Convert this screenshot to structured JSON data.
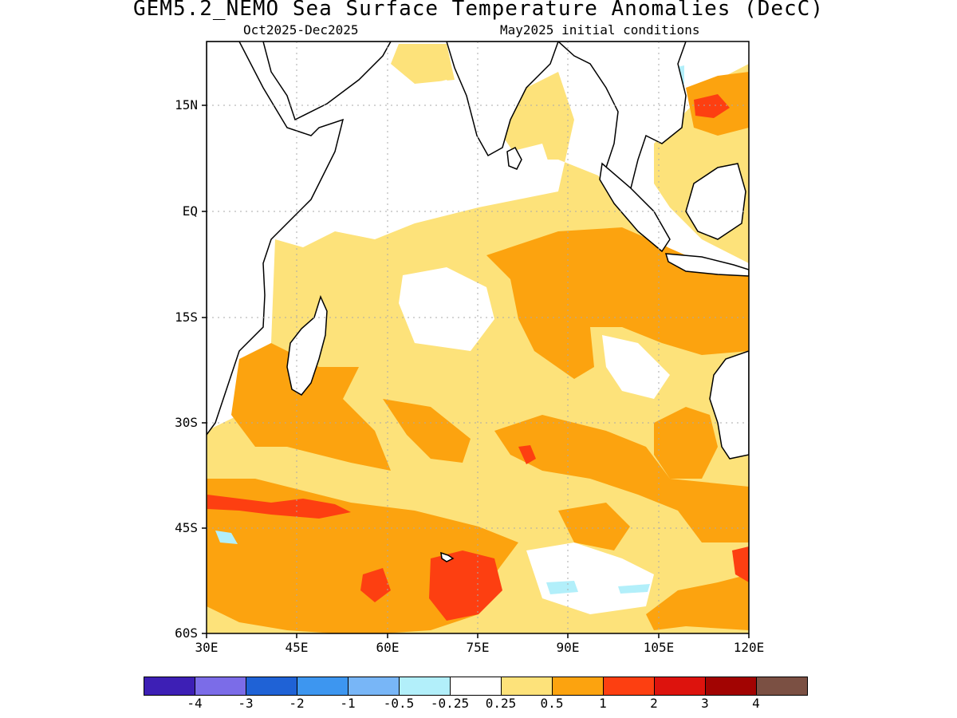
{
  "header": {
    "title": "GEM5.2_NEMO Sea Surface Temperature Anomalies (DecC)",
    "period": "Oct2025-Dec2025",
    "init": "May2025 initial conditions"
  },
  "map": {
    "region": "Indian Ocean",
    "lat_range": [
      "60S",
      "24N"
    ],
    "lon_range": [
      "30E",
      "120E"
    ],
    "lat_labels": [
      "15N",
      "EQ",
      "15S",
      "30S",
      "45S",
      "60S"
    ],
    "lon_labels": [
      "30E",
      "45E",
      "60E",
      "75E",
      "90E",
      "105E",
      "120E"
    ],
    "grid": "dotted"
  },
  "colorbar": {
    "colors": [
      "#3d1fb5",
      "#7b6ce8",
      "#1f62d6",
      "#3d96f0",
      "#78b6f7",
      "#b2effa",
      "#ffffff",
      "#fde27a",
      "#fca30f",
      "#fd3f11",
      "#dd130d",
      "#a20402",
      "#7b5043"
    ],
    "labels": [
      "-4",
      "-3",
      "-2",
      "-1",
      "-0.5",
      "-0.25",
      "0.25",
      "0.5",
      "1",
      "2",
      "3",
      "4"
    ]
  }
}
